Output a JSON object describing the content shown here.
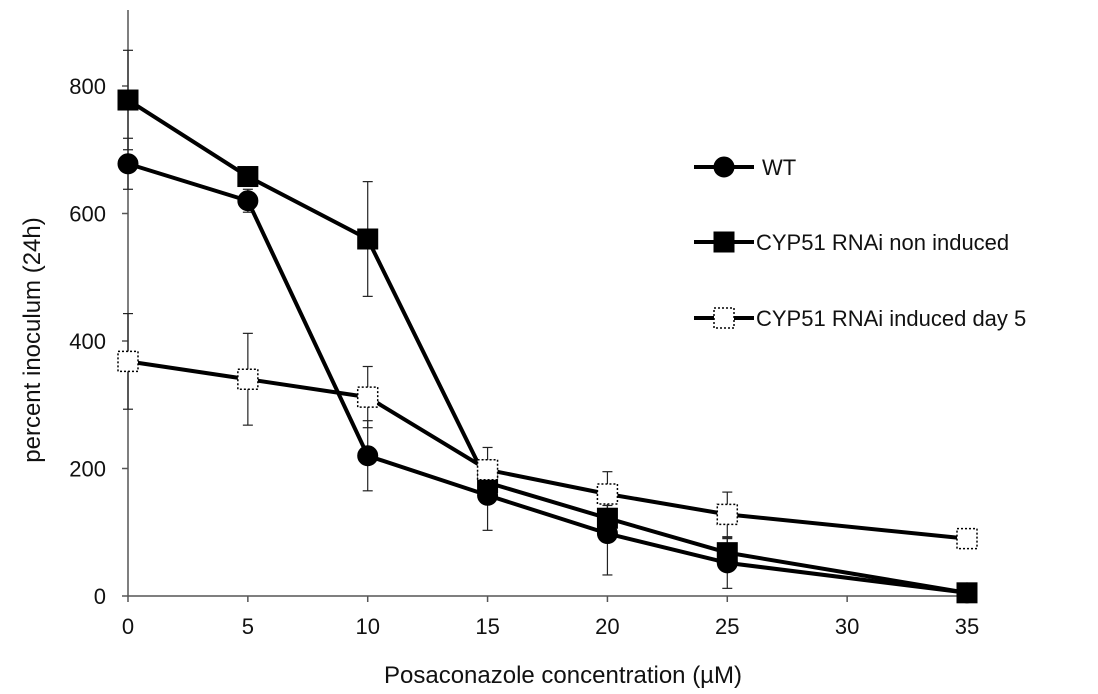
{
  "chart_data": {
    "type": "line",
    "title": "",
    "xlabel": "Posaconazole concentration (µM)",
    "ylabel": "percent inoculum (24h)",
    "xlim": [
      0,
      35
    ],
    "ylim": [
      0,
      800
    ],
    "x_ticks": [
      "0",
      "5",
      "10",
      "15",
      "20",
      "25",
      "30",
      "35"
    ],
    "y_ticks": [
      "0",
      "200",
      "400",
      "600",
      "800"
    ],
    "grid": false,
    "legend_position": "right",
    "series": [
      {
        "name": "WT",
        "marker": "circle",
        "marker_fill": "#000000",
        "x": [
          0,
          5,
          10,
          15,
          20,
          25,
          35
        ],
        "values": [
          678,
          620,
          220,
          158,
          98,
          52,
          5
        ],
        "errors": [
          40,
          18,
          55,
          55,
          65,
          40,
          5
        ]
      },
      {
        "name": "CYP51 RNAi non induced",
        "marker": "square",
        "marker_fill": "#000000",
        "x": [
          0,
          5,
          10,
          15,
          20,
          25,
          35
        ],
        "values": [
          778,
          658,
          560,
          178,
          122,
          68,
          5
        ],
        "errors": [
          78,
          15,
          90,
          25,
          20,
          22,
          5
        ]
      },
      {
        "name": "CYP51 RNAi induced day 5",
        "marker": "square-open-dotted",
        "marker_fill": "#ffffff",
        "x": [
          0,
          5,
          10,
          15,
          20,
          25,
          35
        ],
        "values": [
          368,
          340,
          312,
          198,
          160,
          128,
          90
        ],
        "errors": [
          75,
          72,
          48,
          35,
          35,
          35,
          8
        ]
      }
    ]
  }
}
